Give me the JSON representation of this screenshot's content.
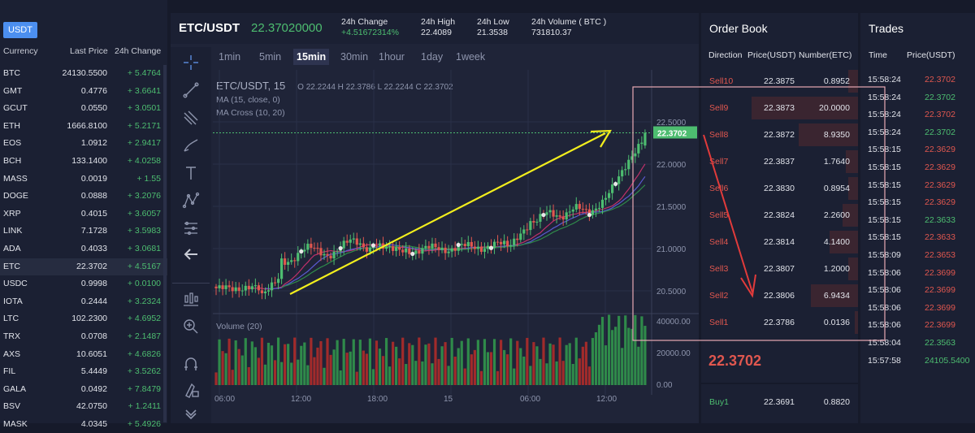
{
  "market": {
    "tab": "USDT",
    "headers": [
      "Currency",
      "Last Price",
      "24h Change"
    ],
    "rows": [
      {
        "sym": "BTC",
        "price": "24130.5500",
        "chg": "+ 5.4764"
      },
      {
        "sym": "GMT",
        "price": "0.4776",
        "chg": "+ 3.6641"
      },
      {
        "sym": "GCUT",
        "price": "0.0550",
        "chg": "+ 3.0501"
      },
      {
        "sym": "ETH",
        "price": "1666.8100",
        "chg": "+ 5.2171"
      },
      {
        "sym": "EOS",
        "price": "1.0912",
        "chg": "+ 2.9417"
      },
      {
        "sym": "BCH",
        "price": "133.1400",
        "chg": "+ 4.0258"
      },
      {
        "sym": "MASS",
        "price": "0.0019",
        "chg": "+ 1.55"
      },
      {
        "sym": "DOGE",
        "price": "0.0888",
        "chg": "+ 3.2076"
      },
      {
        "sym": "XRP",
        "price": "0.4015",
        "chg": "+ 3.6057"
      },
      {
        "sym": "LINK",
        "price": "7.1728",
        "chg": "+ 3.5983"
      },
      {
        "sym": "ADA",
        "price": "0.4033",
        "chg": "+ 3.0681"
      },
      {
        "sym": "ETC",
        "price": "22.3702",
        "chg": "+ 4.5167"
      },
      {
        "sym": "USDC",
        "price": "0.9998",
        "chg": "+ 0.0100"
      },
      {
        "sym": "IOTA",
        "price": "0.2444",
        "chg": "+ 3.2324"
      },
      {
        "sym": "LTC",
        "price": "102.2300",
        "chg": "+ 4.6952"
      },
      {
        "sym": "TRX",
        "price": "0.0708",
        "chg": "+ 2.1487"
      },
      {
        "sym": "AXS",
        "price": "10.6051",
        "chg": "+ 4.6826"
      },
      {
        "sym": "FIL",
        "price": "5.4449",
        "chg": "+ 3.5262"
      },
      {
        "sym": "GALA",
        "price": "0.0492",
        "chg": "+ 7.8479"
      },
      {
        "sym": "BSV",
        "price": "42.0750",
        "chg": "+ 1.2411"
      },
      {
        "sym": "MASK",
        "price": "4.0345",
        "chg": "+ 5.4926"
      }
    ],
    "active_index": 11
  },
  "ticker": {
    "pair": "ETC/USDT",
    "last": "22.37020000",
    "change_label": "24h Change",
    "change_value": "+4.51672314%",
    "high_label": "24h High",
    "high_value": "22.4089",
    "low_label": "24h Low",
    "low_value": "21.3538",
    "volume_label": "24h Volume ( BTC )",
    "volume_value": "731810.37"
  },
  "timeframes": [
    "1min",
    "5min",
    "15min",
    "30min",
    "1hour",
    "1day",
    "1week"
  ],
  "timeframe_active": 2,
  "chart": {
    "legend_title": "ETC/USDT, 15",
    "ohlc": "O 22.2244  H 22.3786  L 22.2244  C 22.3702",
    "indicator1": "MA (15, close, 0)",
    "indicator2": "MA Cross (10, 20)",
    "volume_label": "Volume (20)",
    "price_ticks": [
      "22.5000",
      "22.0000",
      "21.5000",
      "21.0000",
      "20.5000"
    ],
    "volume_ticks": [
      "40000.00",
      "20000.00",
      "0.00"
    ],
    "time_ticks": [
      "06:00",
      "12:00",
      "18:00",
      "15",
      "06:00",
      "12:00"
    ],
    "last_price_tag": "22.3702",
    "colors": {
      "up": "#4dbd70",
      "down": "#e0574f",
      "arrow": "#f2ee1d",
      "annotation": "#e8a9b4"
    }
  },
  "orderbook": {
    "title": "Order Book",
    "headers": [
      "Direction",
      "Price(USDT)",
      "Number(ETC)"
    ],
    "asks": [
      {
        "label": "Sell10",
        "price": "22.3875",
        "qty": "0.8952",
        "depth": 0.06
      },
      {
        "label": "Sell9",
        "price": "22.3873",
        "qty": "20.0000",
        "depth": 0.68
      },
      {
        "label": "Sell8",
        "price": "22.3872",
        "qty": "8.9350",
        "depth": 0.38
      },
      {
        "label": "Sell7",
        "price": "22.3837",
        "qty": "1.7640",
        "depth": 0.08
      },
      {
        "label": "Sell6",
        "price": "22.3830",
        "qty": "0.8954",
        "depth": 0.06
      },
      {
        "label": "Sell5",
        "price": "22.3824",
        "qty": "2.2600",
        "depth": 0.1
      },
      {
        "label": "Sell4",
        "price": "22.3814",
        "qty": "4.1400",
        "depth": 0.18
      },
      {
        "label": "Sell3",
        "price": "22.3807",
        "qty": "1.2000",
        "depth": 0.06
      },
      {
        "label": "Sell2",
        "price": "22.3806",
        "qty": "6.9434",
        "depth": 0.3
      },
      {
        "label": "Sell1",
        "price": "22.3786",
        "qty": "0.0136",
        "depth": 0.02
      }
    ],
    "mid_price": "22.3702",
    "bids": [
      {
        "label": "Buy1",
        "price": "22.3691",
        "qty": "0.8820"
      }
    ]
  },
  "trades": {
    "title": "Trades",
    "headers": [
      "Time",
      "Price(USDT)"
    ],
    "rows": [
      {
        "time": "15:58:24",
        "price": "22.3702",
        "side": "red"
      },
      {
        "time": "15:58:24",
        "price": "22.3702",
        "side": "green"
      },
      {
        "time": "15:58:24",
        "price": "22.3702",
        "side": "red"
      },
      {
        "time": "15:58:24",
        "price": "22.3702",
        "side": "green"
      },
      {
        "time": "15:58:15",
        "price": "22.3629",
        "side": "red"
      },
      {
        "time": "15:58:15",
        "price": "22.3629",
        "side": "red"
      },
      {
        "time": "15:58:15",
        "price": "22.3629",
        "side": "red"
      },
      {
        "time": "15:58:15",
        "price": "22.3629",
        "side": "red"
      },
      {
        "time": "15:58:15",
        "price": "22.3633",
        "side": "green"
      },
      {
        "time": "15:58:15",
        "price": "22.3633",
        "side": "red"
      },
      {
        "time": "15:58:09",
        "price": "22.3653",
        "side": "red"
      },
      {
        "time": "15:58:06",
        "price": "22.3699",
        "side": "red"
      },
      {
        "time": "15:58:06",
        "price": "22.3699",
        "side": "red"
      },
      {
        "time": "15:58:06",
        "price": "22.3699",
        "side": "red"
      },
      {
        "time": "15:58:06",
        "price": "22.3699",
        "side": "red"
      },
      {
        "time": "15:58:04",
        "price": "22.3563",
        "side": "green"
      },
      {
        "time": "15:57:58",
        "price": "24105.5400",
        "side": "green"
      }
    ]
  }
}
